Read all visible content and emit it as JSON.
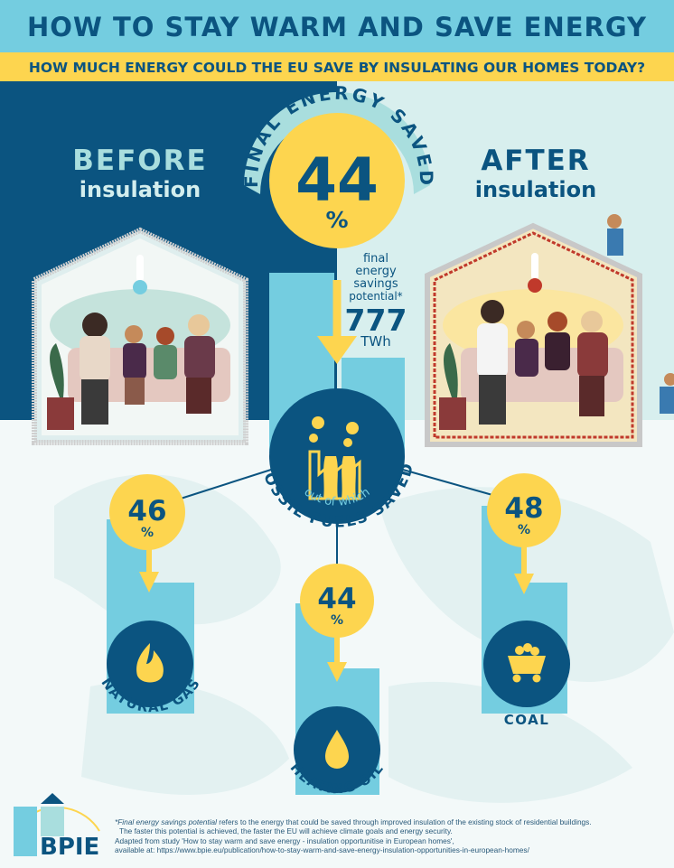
{
  "title": "HOW TO STAY WARM AND SAVE ENERGY",
  "subtitle": "HOW MUCH ENERGY COULD THE EU SAVE BY INSULATING OUR HOMES TODAY?",
  "before": {
    "heading": "BEFORE",
    "sub": "insulation"
  },
  "after": {
    "heading": "AFTER",
    "sub": "insulation"
  },
  "final_energy": {
    "arc_label": "FINAL ENERGY SAVED",
    "value": "44",
    "unit": "%",
    "desc_lines": [
      "final",
      "energy",
      "savings",
      "potential*"
    ],
    "amount": "777",
    "amount_unit": "TWh"
  },
  "fossil": {
    "top_label": "out of which",
    "bottom_label": "FOSSIL FUELS SAVED",
    "icon": "factory-icon"
  },
  "sources": [
    {
      "value": "46",
      "unit": "%",
      "label": "NATURAL GAS",
      "icon": "flame-icon"
    },
    {
      "value": "44",
      "unit": "%",
      "label": "HEATING OIL",
      "icon": "oil-drop-icon"
    },
    {
      "value": "48",
      "unit": "%",
      "label": "COAL",
      "icon": "coal-cart-icon"
    }
  ],
  "footnote": {
    "term": "*Final energy savings potential",
    "line1": " refers to the energy that could be saved through improved insulation of the existing stock of residential buildings.",
    "line2": "The faster this potential is achieved, the faster the EU will achieve climate goals and energy security.",
    "line3": "Adapted from study 'How to stay warm and save energy - insulation opportunitise in European homes',",
    "line4": "available at: https://www.bpie.eu/publication/how-to-stay-warm-and-save-energy-insulation-opportunities-in-european-homes/"
  },
  "logo": "BPIE",
  "colors": {
    "navy": "#0b5480",
    "yellow": "#fdd54f",
    "light_blue": "#74cde0",
    "mint": "#d8efee"
  }
}
